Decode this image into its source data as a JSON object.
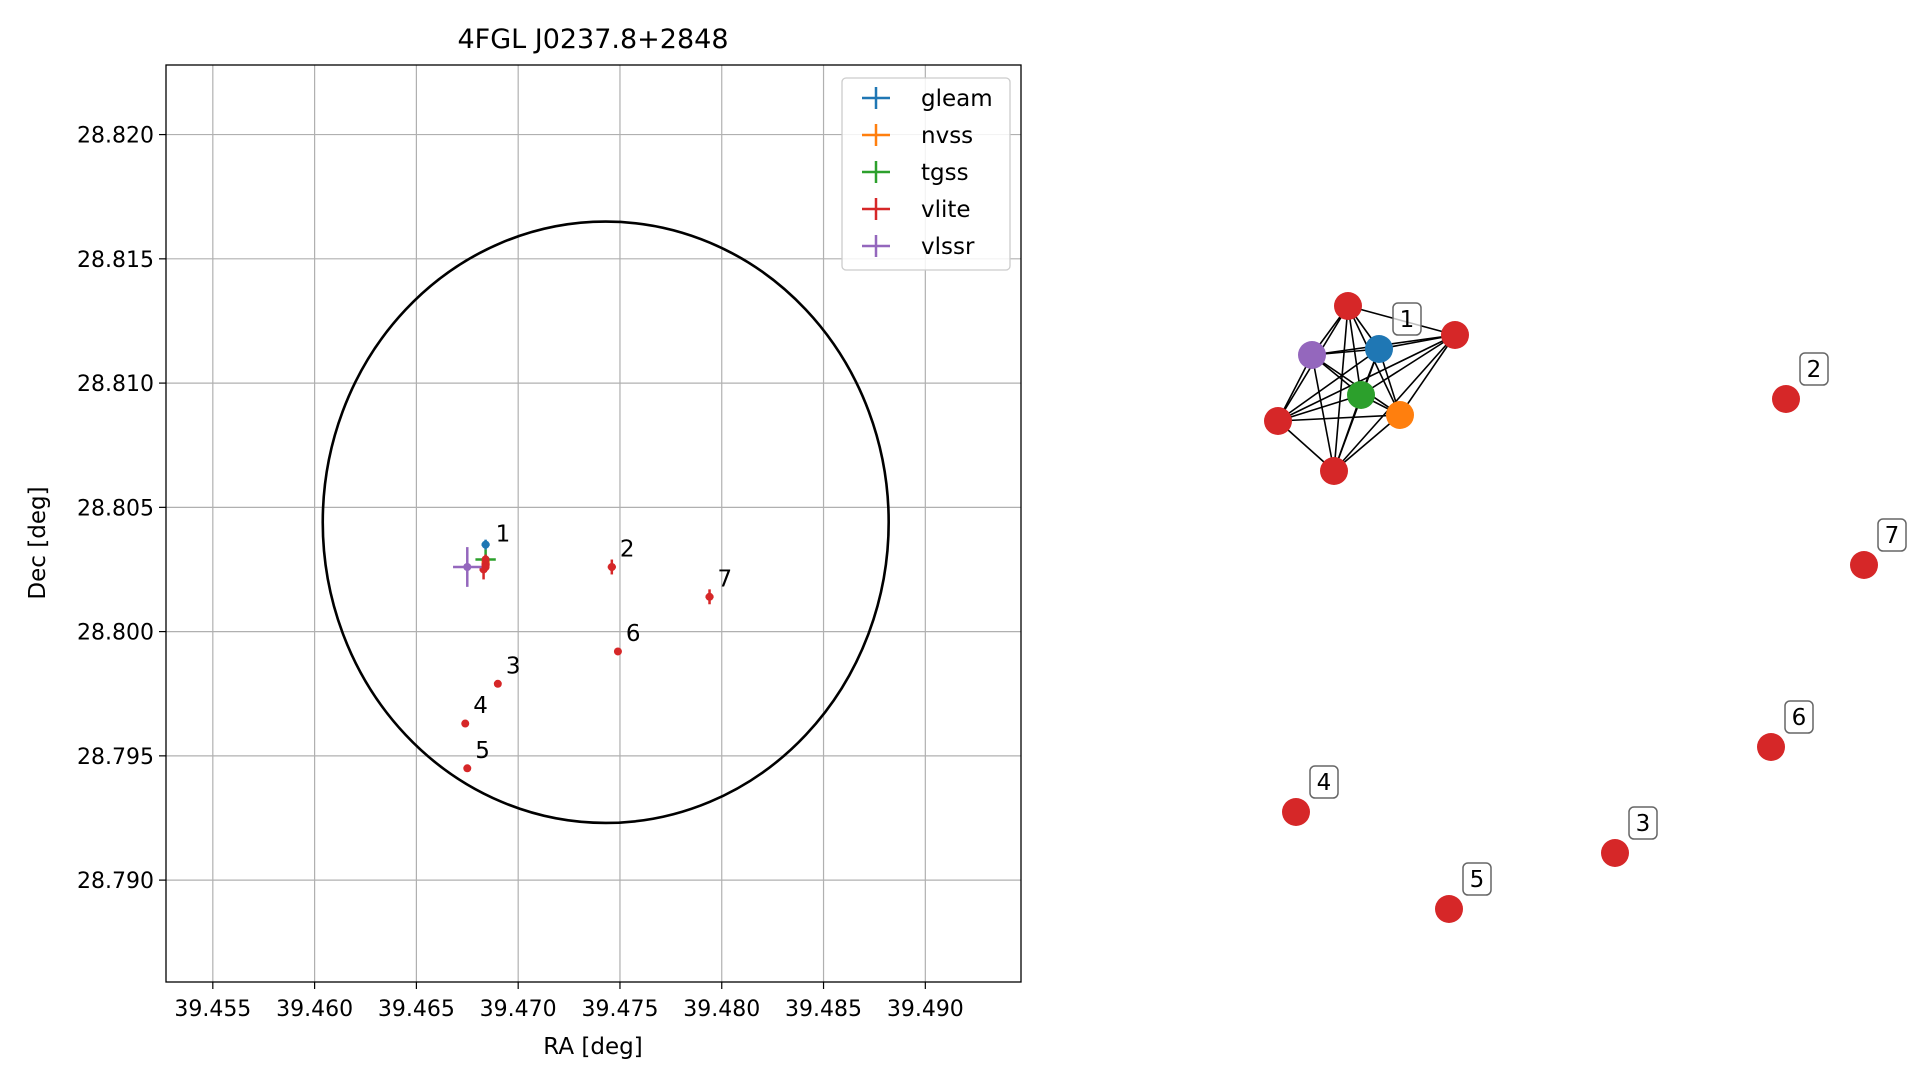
{
  "chart_data": [
    {
      "type": "scatter",
      "title": "4FGL J0237.8+2848",
      "xlabel": "RA [deg]",
      "ylabel": "Dec [deg]",
      "xlim": [
        39.4527,
        39.4947
      ],
      "ylim": [
        28.7859,
        28.8228
      ],
      "x_ticks": [
        "39.455",
        "39.460",
        "39.465",
        "39.470",
        "39.475",
        "39.480",
        "39.485",
        "39.490"
      ],
      "y_ticks": [
        "28.790",
        "28.795",
        "28.800",
        "28.805",
        "28.810",
        "28.815",
        "28.820"
      ],
      "grid": true,
      "legend_position": "top-right",
      "circle": {
        "center_ra": 39.4743,
        "center_dec": 28.8044,
        "radius_ra": 0.0139,
        "radius_dec": 0.0121,
        "color": "#000000"
      },
      "series": [
        {
          "name": "gleam",
          "color": "#1f77b4",
          "points": [
            {
              "x": 39.4684,
              "y": 28.8035,
              "xerr": 0.0002,
              "yerr": 0.0002
            }
          ]
        },
        {
          "name": "nvss",
          "color": "#ff7f0e",
          "points": [
            {
              "x": 39.4684,
              "y": 28.8028,
              "xerr": 0.0002,
              "yerr": 0.0002
            }
          ]
        },
        {
          "name": "tgss",
          "color": "#2ca02c",
          "points": [
            {
              "x": 39.4684,
              "y": 28.8029,
              "xerr": 0.0005,
              "yerr": 0.0004
            }
          ]
        },
        {
          "name": "vlite",
          "color": "#d62728",
          "points": [
            {
              "x": 39.4683,
              "y": 28.8025,
              "xerr": 0.0002,
              "yerr": 0.0004
            },
            {
              "x": 39.4684,
              "y": 28.8027,
              "xerr": 0.0002,
              "yerr": 0.0002
            },
            {
              "x": 39.4684,
              "y": 28.8029,
              "xerr": 0.0001,
              "yerr": 0.0002
            },
            {
              "x": 39.4684,
              "y": 28.8026,
              "xerr": 0.0001,
              "yerr": 0.0002
            },
            {
              "x": 39.4746,
              "y": 28.8026,
              "xerr": 0.0002,
              "yerr": 0.0003
            },
            {
              "x": 39.469,
              "y": 28.7979,
              "xerr": 0.0001,
              "yerr": 0.0001
            },
            {
              "x": 39.4674,
              "y": 28.7963,
              "xerr": 0.0001,
              "yerr": 0.0001
            },
            {
              "x": 39.4675,
              "y": 28.7945,
              "xerr": 0.0001,
              "yerr": 0.0001
            },
            {
              "x": 39.4749,
              "y": 28.7992,
              "xerr": 0.0001,
              "yerr": 0.0001
            },
            {
              "x": 39.4794,
              "y": 28.8014,
              "xerr": 0.0002,
              "yerr": 0.0003
            }
          ]
        },
        {
          "name": "vlssr",
          "color": "#9467bd",
          "points": [
            {
              "x": 39.4675,
              "y": 28.8026,
              "xerr": 0.0007,
              "yerr": 0.0008
            }
          ]
        }
      ],
      "annotations": [
        {
          "text": "1",
          "x": 39.4685,
          "y": 28.8033
        },
        {
          "text": "2",
          "x": 39.4746,
          "y": 28.8027
        },
        {
          "text": "3",
          "x": 39.469,
          "y": 28.798
        },
        {
          "text": "4",
          "x": 39.4674,
          "y": 28.7964
        },
        {
          "text": "5",
          "x": 39.4675,
          "y": 28.7946
        },
        {
          "text": "6",
          "x": 39.4749,
          "y": 28.7993
        },
        {
          "text": "7",
          "x": 39.4794,
          "y": 28.8015
        }
      ]
    },
    {
      "type": "network",
      "nodes": [
        {
          "id": "gleam-1",
          "color": "#1f77b4",
          "label": "1"
        },
        {
          "id": "nvss-1",
          "color": "#ff7f0e",
          "label": ""
        },
        {
          "id": "tgss-1",
          "color": "#2ca02c",
          "label": ""
        },
        {
          "id": "vlssr-1",
          "color": "#9467bd",
          "label": ""
        },
        {
          "id": "vlite-a",
          "color": "#d62728",
          "label": ""
        },
        {
          "id": "vlite-b",
          "color": "#d62728",
          "label": ""
        },
        {
          "id": "vlite-c",
          "color": "#d62728",
          "label": ""
        },
        {
          "id": "vlite-d",
          "color": "#d62728",
          "label": ""
        },
        {
          "id": "vlite-2",
          "color": "#d62728",
          "label": "2"
        },
        {
          "id": "vlite-7",
          "color": "#d62728",
          "label": "7"
        },
        {
          "id": "vlite-6",
          "color": "#d62728",
          "label": "6"
        },
        {
          "id": "vlite-4",
          "color": "#d62728",
          "label": "4"
        },
        {
          "id": "vlite-3",
          "color": "#d62728",
          "label": "3"
        },
        {
          "id": "vlite-5",
          "color": "#d62728",
          "label": "5"
        }
      ],
      "edges": [
        [
          "gleam-1",
          "nvss-1"
        ],
        [
          "gleam-1",
          "tgss-1"
        ],
        [
          "gleam-1",
          "vlssr-1"
        ],
        [
          "gleam-1",
          "vlite-a"
        ],
        [
          "gleam-1",
          "vlite-b"
        ],
        [
          "gleam-1",
          "vlite-c"
        ],
        [
          "gleam-1",
          "vlite-d"
        ],
        [
          "nvss-1",
          "tgss-1"
        ],
        [
          "nvss-1",
          "vlssr-1"
        ],
        [
          "nvss-1",
          "vlite-a"
        ],
        [
          "nvss-1",
          "vlite-b"
        ],
        [
          "nvss-1",
          "vlite-c"
        ],
        [
          "nvss-1",
          "vlite-d"
        ],
        [
          "tgss-1",
          "vlssr-1"
        ],
        [
          "tgss-1",
          "vlite-a"
        ],
        [
          "tgss-1",
          "vlite-b"
        ],
        [
          "tgss-1",
          "vlite-c"
        ],
        [
          "tgss-1",
          "vlite-d"
        ],
        [
          "vlssr-1",
          "vlite-a"
        ],
        [
          "vlssr-1",
          "vlite-b"
        ],
        [
          "vlssr-1",
          "vlite-c"
        ],
        [
          "vlssr-1",
          "vlite-d"
        ],
        [
          "vlite-a",
          "vlite-b"
        ],
        [
          "vlite-a",
          "vlite-c"
        ],
        [
          "vlite-a",
          "vlite-d"
        ],
        [
          "vlite-b",
          "vlite-c"
        ],
        [
          "vlite-b",
          "vlite-d"
        ],
        [
          "vlite-c",
          "vlite-d"
        ]
      ]
    }
  ]
}
